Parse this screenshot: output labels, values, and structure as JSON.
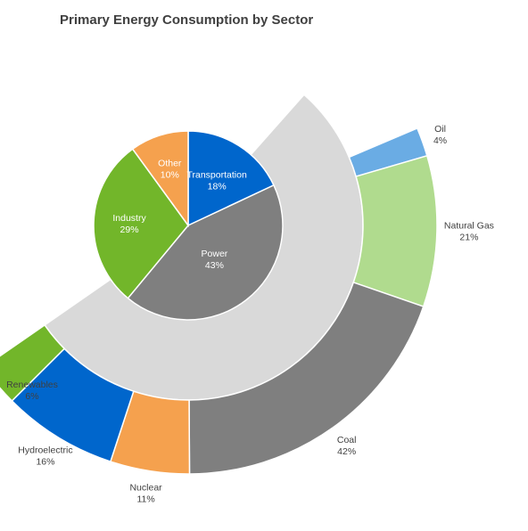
{
  "chart_data": {
    "type": "pie",
    "title": "Primary Energy Consumption by Sector",
    "sectors": [
      {
        "label": "Transportation",
        "value": 18,
        "pct": "18%",
        "color": "#0066CC"
      },
      {
        "label": "Power",
        "value": 43,
        "pct": "43%",
        "color": "#7F7F7F"
      },
      {
        "label": "Industry",
        "value": 29,
        "pct": "29%",
        "color": "#72B62A"
      },
      {
        "label": "Other",
        "value": 10,
        "pct": "10%",
        "color": "#F5A14E"
      }
    ],
    "power_breakdown": [
      {
        "label": "Oil",
        "value": 4,
        "pct": "4%",
        "color": "#6AACE4"
      },
      {
        "label": "Natural Gas",
        "value": 21,
        "pct": "21%",
        "color": "#B0DB8E"
      },
      {
        "label": "Coal",
        "value": 42,
        "pct": "42%",
        "color": "#7F7F7F"
      },
      {
        "label": "Nuclear",
        "value": 11,
        "pct": "11%",
        "color": "#F5A14E"
      },
      {
        "label": "Hydroelectric",
        "value": 16,
        "pct": "16%",
        "color": "#0066CC"
      },
      {
        "label": "Renewables",
        "value": 6,
        "pct": "6%",
        "color": "#72B62A"
      }
    ],
    "connector_color": "#D9D9D9"
  }
}
